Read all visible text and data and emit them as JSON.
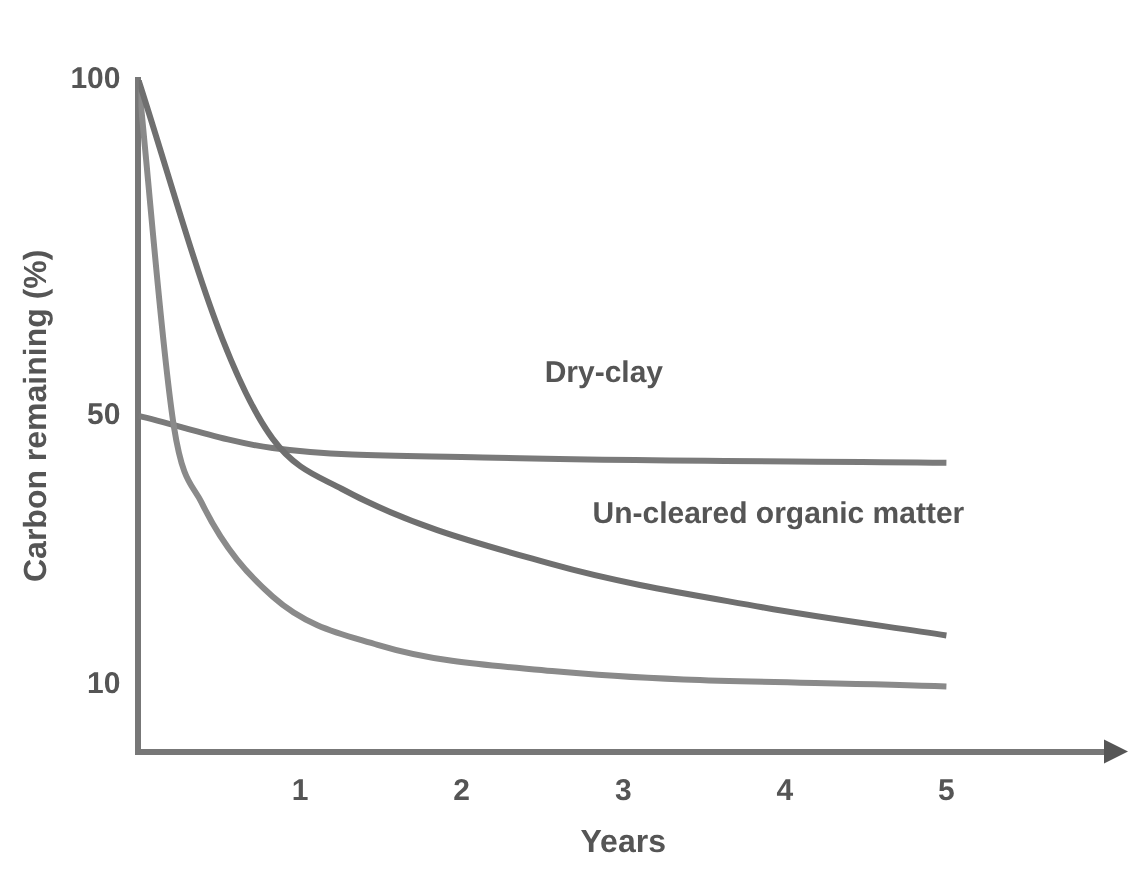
{
  "chart_data": {
    "type": "line",
    "xlabel": "Years",
    "ylabel": "Carbon remaining (%)",
    "xlim": [
      0,
      6
    ],
    "xticks": [
      1,
      2,
      3,
      4,
      5
    ],
    "ylim": [
      0,
      100
    ],
    "yticks": [
      10,
      50,
      100
    ],
    "grid": false,
    "legend": false,
    "marker": "none",
    "line_style": "solid",
    "series": [
      {
        "color": "#6f6f6f",
        "x": [
          0,
          0.52,
          0.83,
          1.26,
          2.56,
          3.86,
          5
        ],
        "values": [
          100,
          61.4,
          46.6,
          39.1,
          27.9,
          21.5,
          17.3
        ]
      },
      {
        "color": "#8a8a8a",
        "x": [
          0,
          0.22,
          0.39,
          0.83,
          1.48,
          2.56,
          5
        ],
        "values": [
          100,
          48.3,
          37.1,
          23.1,
          15.9,
          12,
          9.7
        ]
      },
      {
        "color": "#7a7a7a",
        "x": [
          0,
          0.83,
          2.13,
          5
        ],
        "values": [
          50,
          45.2,
          43.8,
          43
        ]
      }
    ],
    "annotations": [
      "Dry-clay",
      "Un-cleared organic matter"
    ]
  }
}
